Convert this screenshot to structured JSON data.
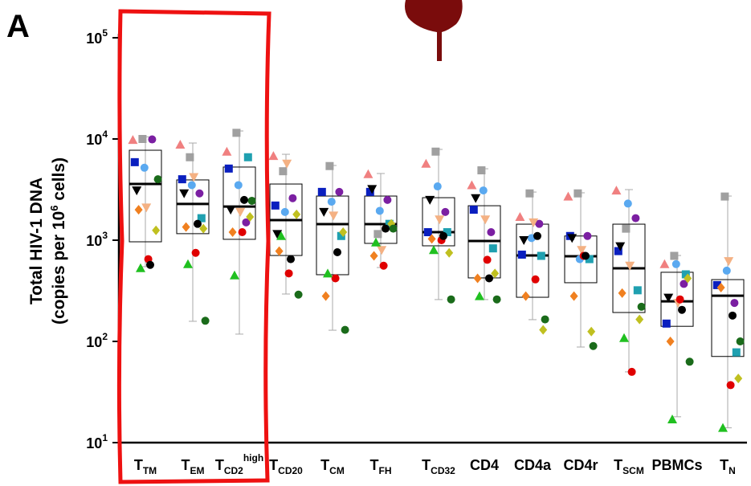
{
  "panel_label": "A",
  "chart_data": {
    "type": "box",
    "ylabel": "Total HIV-1 DNA",
    "ylabel2": {
      "text": "(copies per 10",
      "sup": "6",
      "tail": " cells)"
    },
    "ylog": true,
    "ylim": [
      10,
      100000
    ],
    "yticks": [
      {
        "value": 10,
        "label": "10",
        "sup": "1"
      },
      {
        "value": 100,
        "label": "10",
        "sup": "2"
      },
      {
        "value": 1000,
        "label": "10",
        "sup": "3"
      },
      {
        "value": 10000,
        "label": "10",
        "sup": "4"
      },
      {
        "value": 100000,
        "label": "10",
        "sup": "5"
      }
    ],
    "categories": [
      {
        "text": "T",
        "sub": "TM"
      },
      {
        "text": "T",
        "sub": "EM"
      },
      {
        "text": "T",
        "sub": "CD2",
        "sup": "high"
      },
      {
        "text": "T",
        "sub": "CD20"
      },
      {
        "text": "T",
        "sub": "CM"
      },
      {
        "text": "T",
        "sub": "FH"
      },
      {
        "text": "T",
        "sub": "CD32"
      },
      {
        "text": "CD4"
      },
      {
        "text": "CD4a"
      },
      {
        "text": "CD4r"
      },
      {
        "text": "T",
        "sub": "SCM"
      },
      {
        "text": "PBMCs"
      },
      {
        "text": "T",
        "sub": "N"
      }
    ],
    "boxes": {
      "whislo": [
        547,
        158,
        118,
        294,
        129,
        537,
        259,
        259,
        164,
        88,
        50,
        18,
        14
      ],
      "q1": [
        964,
        1160,
        1020,
        706,
        456,
        930,
        880,
        424,
        273,
        380,
        193,
        141,
        71
      ],
      "median": [
        3590,
        2280,
        2150,
        1580,
        1440,
        1440,
        1200,
        982,
        706,
        694,
        527,
        249,
        283
      ],
      "q3": [
        7740,
        3940,
        5280,
        3590,
        2730,
        2730,
        2630,
        2190,
        1440,
        1100,
        1440,
        482,
        408
      ],
      "whishi": [
        10500,
        9120,
        12000,
        7060,
        5470,
        4560,
        7890,
        5080,
        2990,
        2940,
        3160,
        706,
        2730
      ]
    },
    "series": [
      {
        "color": "#f08080",
        "shape": "triangle-up",
        "values": [
          9800,
          8800,
          7500,
          6800,
          null,
          4500,
          5700,
          3500,
          1700,
          2700,
          3100,
          580,
          null
        ]
      },
      {
        "color": "#a0a0a0",
        "shape": "square",
        "values": [
          10000,
          6600,
          11500,
          4800,
          5400,
          1150,
          7500,
          4900,
          2900,
          2900,
          1300,
          700,
          2700
        ]
      },
      {
        "color": "#7b1fa2",
        "shape": "circle",
        "values": [
          9900,
          2900,
          1500,
          2600,
          3000,
          2500,
          1900,
          1200,
          1450,
          1100,
          1650,
          370,
          240
        ]
      },
      {
        "color": "#0a1fbf",
        "shape": "square",
        "values": [
          5900,
          4000,
          5100,
          2200,
          3000,
          3000,
          1200,
          2000,
          720,
          1100,
          780,
          150,
          360
        ]
      },
      {
        "color": "#5aa9f0",
        "shape": "circle",
        "values": [
          5200,
          3500,
          3500,
          1900,
          2400,
          1950,
          3400,
          3100,
          1050,
          650,
          2300,
          580,
          500
        ]
      },
      {
        "color": "#1fa0b0",
        "shape": "square",
        "values": [
          null,
          1650,
          6600,
          null,
          1100,
          1450,
          1200,
          830,
          700,
          650,
          320,
          460,
          78
        ]
      },
      {
        "color": "#000000",
        "shape": "triangle-down",
        "values": [
          3100,
          2900,
          2000,
          1150,
          1900,
          3200,
          2500,
          2600,
          1000,
          1050,
          870,
          270,
          null
        ]
      },
      {
        "color": "#f4b183",
        "shape": "triangle-down",
        "values": [
          2100,
          4200,
          1900,
          5700,
          1750,
          800,
          1600,
          1600,
          1500,
          800,
          560,
          240,
          620
        ]
      },
      {
        "color": "#c0c020",
        "shape": "diamond",
        "values": [
          1250,
          1300,
          1700,
          1800,
          1200,
          1450,
          750,
          470,
          130,
          125,
          165,
          420,
          43
        ]
      },
      {
        "color": "#f08020",
        "shape": "diamond",
        "values": [
          2000,
          1350,
          1200,
          780,
          280,
          700,
          1030,
          420,
          280,
          280,
          300,
          100,
          340
        ]
      },
      {
        "color": "#e00000",
        "shape": "circle",
        "values": [
          650,
          750,
          1200,
          470,
          420,
          560,
          1000,
          640,
          410,
          700,
          50,
          260,
          37
        ]
      },
      {
        "color": "#1a6b1a",
        "shape": "circle",
        "values": [
          4000,
          160,
          2450,
          290,
          130,
          1300,
          260,
          260,
          165,
          90,
          220,
          63,
          100
        ]
      },
      {
        "color": "#20c020",
        "shape": "triangle-up",
        "values": [
          530,
          580,
          450,
          1100,
          470,
          950,
          800,
          280,
          null,
          null,
          108,
          17,
          14
        ]
      },
      {
        "color": "#000000",
        "shape": "circle",
        "values": [
          570,
          1450,
          2500,
          650,
          760,
          1300,
          1100,
          420,
          1100,
          700,
          null,
          205,
          180
        ]
      }
    ]
  }
}
